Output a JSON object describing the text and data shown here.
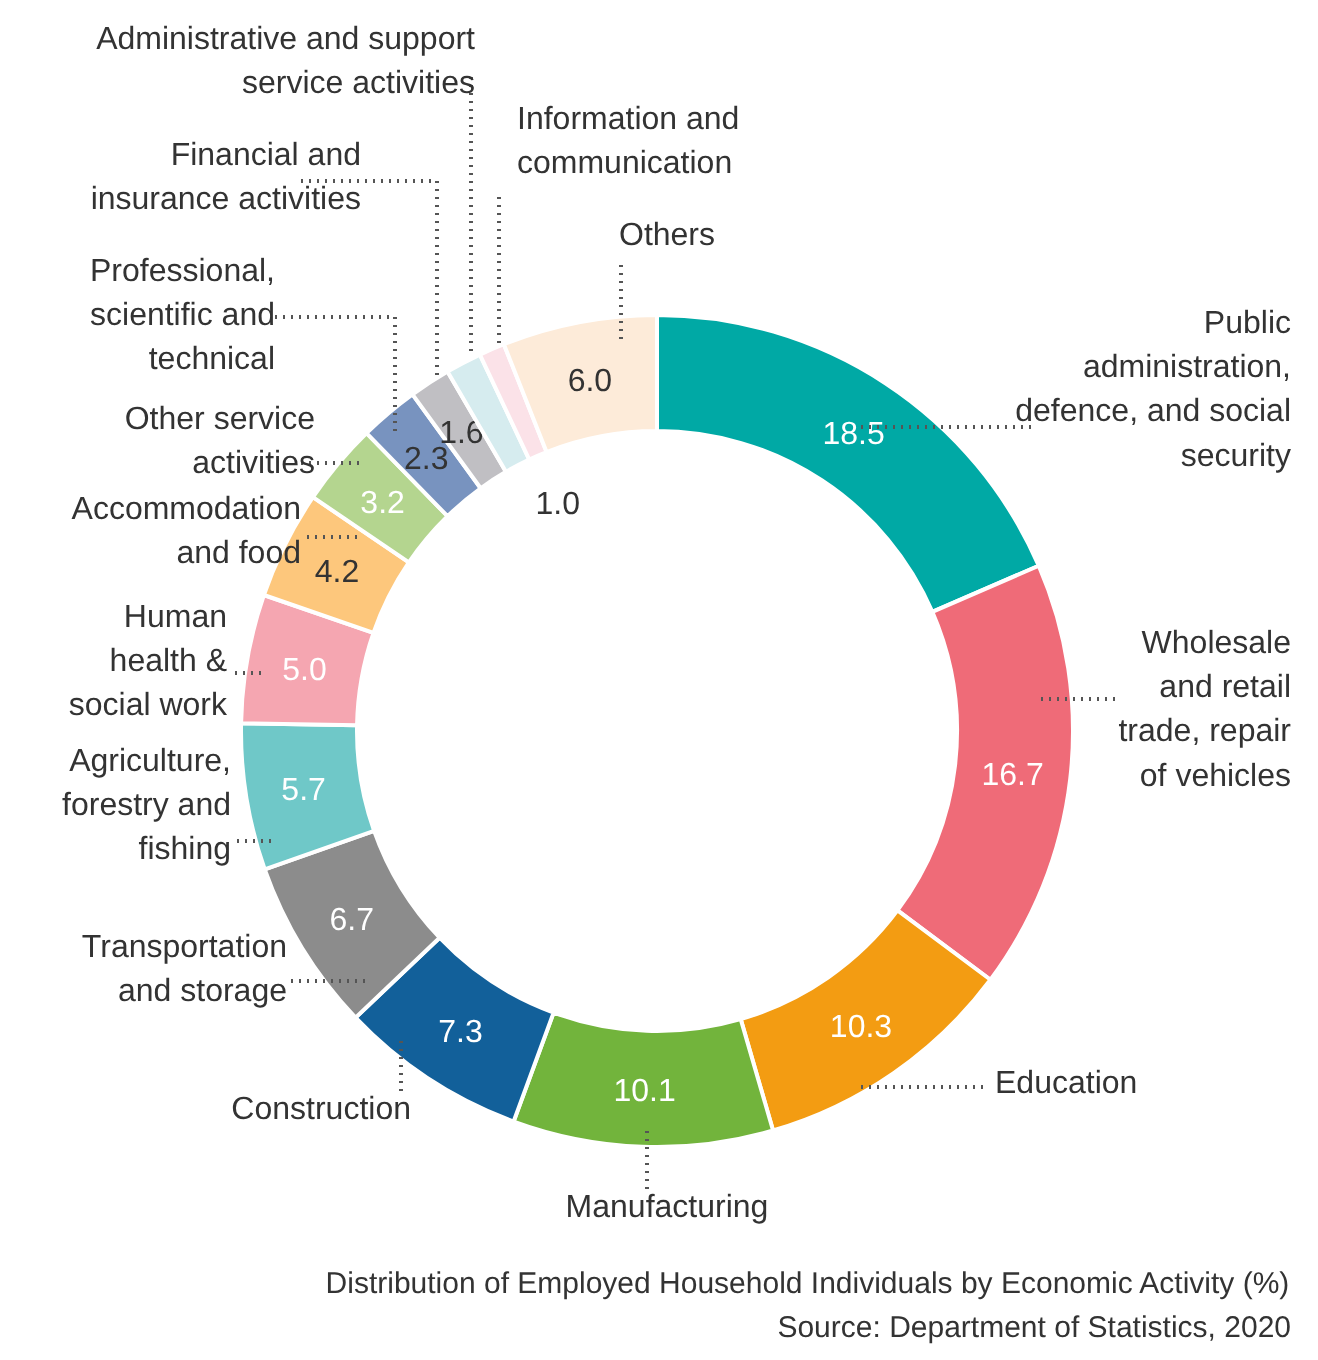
{
  "chart_data": {
    "type": "donut",
    "title": "Distribution of Employed Household Individuals by Economic Activity (%)",
    "annotations": [
      "Source: Department of Statistics, 2020"
    ],
    "categories": [
      "Public administration, defence, and social security",
      "Wholesale and retail trade, repair of vehicles",
      "Education",
      "Manufacturing",
      "Construction",
      "Transportation and storage",
      "Agriculture, forestry and fishing",
      "Human health & social work",
      "Accommodation and food",
      "Other service activities",
      "Professional, scientific and technical",
      "Financial and insurance activities",
      "Administrative and support service activities",
      "Information and communication",
      "Others"
    ],
    "values": [
      18.5,
      16.7,
      10.3,
      10.1,
      7.3,
      6.7,
      5.7,
      5.0,
      4.2,
      3.2,
      2.3,
      1.6,
      1.4,
      1.0,
      6.0
    ],
    "value_labels": [
      "18.5",
      "16.7",
      "10.3",
      "10.1",
      "7.3",
      "6.7",
      "5.7",
      "5.0",
      "4.2",
      "3.2",
      "2.3",
      "1.6",
      null,
      "1.0",
      "6.0"
    ],
    "colors": [
      "#00a9a5",
      "#ef6b78",
      "#f39c12",
      "#72b43c",
      "#12609a",
      "#8c8c8c",
      "#6fc8c8",
      "#f5a6b1",
      "#fdc77c",
      "#b4d58f",
      "#7893bf",
      "#c0bfc3",
      "#d6ecef",
      "#fbe2e8",
      "#fdebd9"
    ]
  }
}
